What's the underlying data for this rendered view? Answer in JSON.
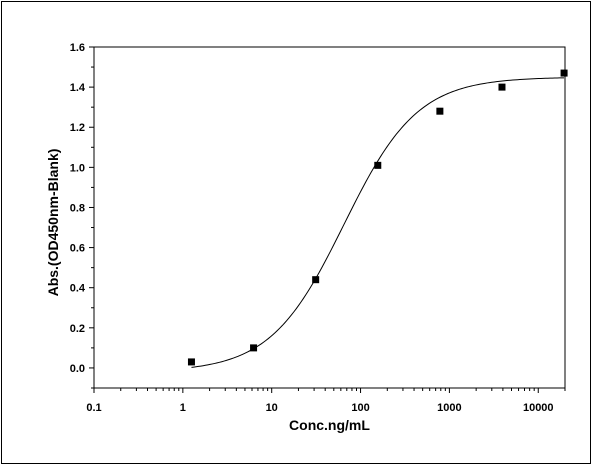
{
  "chart_data": {
    "type": "scatter",
    "title": "",
    "xlabel": "Conc.ng/mL",
    "ylabel": "Abs.(OD450nm-Blank)",
    "x_scale": "log",
    "xlim": [
      0.1,
      20000
    ],
    "ylim": [
      -0.1,
      1.6
    ],
    "x_ticks": [
      0.1,
      1,
      10,
      100,
      1000,
      10000
    ],
    "x_tick_labels": [
      "0.1",
      "1",
      "10",
      "100",
      "1000",
      "10000"
    ],
    "y_ticks": [
      0.0,
      0.2,
      0.4,
      0.6,
      0.8,
      1.0,
      1.2,
      1.4,
      1.6
    ],
    "y_tick_labels": [
      "0.0",
      "0.2",
      "0.4",
      "0.6",
      "0.8",
      "1.0",
      "1.2",
      "1.4",
      "1.6"
    ],
    "grid": false,
    "legend": "none",
    "series": [
      {
        "points": [
          {
            "x": 1.25,
            "y": 0.03
          },
          {
            "x": 6.25,
            "y": 0.1
          },
          {
            "x": 31.25,
            "y": 0.44
          },
          {
            "x": 156.25,
            "y": 1.01
          },
          {
            "x": 781.25,
            "y": 1.28
          },
          {
            "x": 3906.25,
            "y": 1.4
          },
          {
            "x": 19531.25,
            "y": 1.47
          }
        ],
        "marker": "square",
        "color": "#000000"
      }
    ],
    "fit_curve": {
      "model": "4PL",
      "bottom": -0.02,
      "top": 1.45,
      "ec50": 65,
      "hill": 1.05,
      "color": "#000000"
    }
  }
}
